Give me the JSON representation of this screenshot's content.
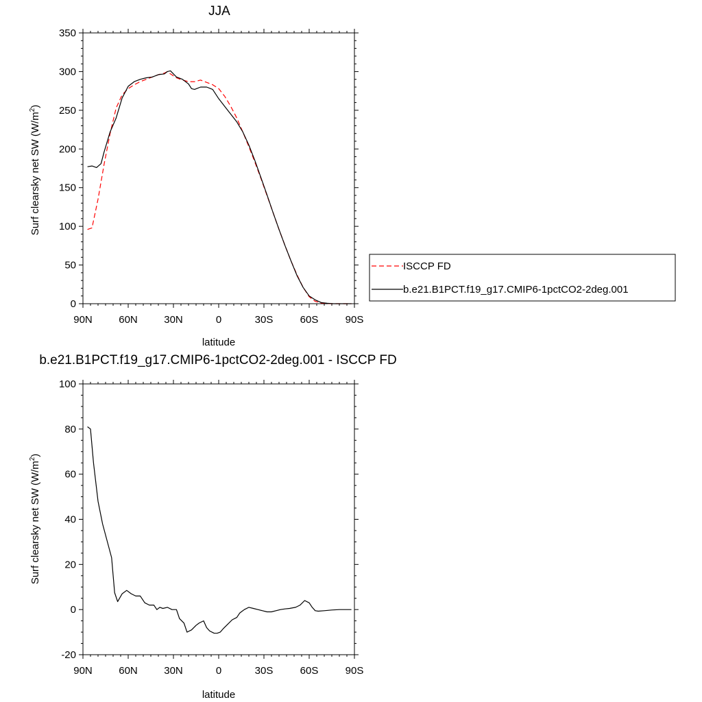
{
  "chart_data": [
    {
      "type": "line",
      "title": "JJA",
      "xlabel": "latitude",
      "ylabel_main": "Surf clearsky net SW (W/m",
      "ylabel_sup": "2",
      "ylabel_tail": ")",
      "xlim": [
        90,
        -90
      ],
      "ylim": [
        0,
        350
      ],
      "x_ticks": [
        90,
        60,
        30,
        0,
        -30,
        -60,
        -90
      ],
      "x_tick_labels": [
        "90N",
        "60N",
        "30N",
        "0",
        "30S",
        "60S",
        "90S"
      ],
      "y_ticks": [
        0,
        50,
        100,
        150,
        200,
        250,
        300,
        350
      ],
      "y_tick_labels": [
        "0",
        "50",
        "100",
        "150",
        "200",
        "250",
        "300",
        "350"
      ],
      "legend_position": "right",
      "series": [
        {
          "name": "ISCCP FD",
          "color": "#ff0000",
          "dash": "dashed",
          "x": [
            87,
            84,
            80,
            76,
            72,
            68,
            64,
            60,
            56,
            52,
            48,
            44,
            40,
            36,
            34,
            32,
            28,
            24,
            20,
            16,
            12,
            8,
            4,
            0,
            -4,
            -8,
            -12,
            -16,
            -20,
            -24,
            -28,
            -32,
            -36,
            -40,
            -44,
            -48,
            -52,
            -56,
            -60,
            -64,
            -68,
            -72,
            -76,
            -80,
            -84,
            -88
          ],
          "y": [
            96,
            98,
            135,
            180,
            220,
            253,
            270,
            278,
            283,
            287,
            290,
            293,
            296,
            298,
            300,
            297,
            292,
            289,
            287,
            287,
            289,
            286,
            283,
            278,
            268,
            255,
            240,
            222,
            203,
            183,
            162,
            140,
            118,
            96,
            75,
            55,
            37,
            21,
            9,
            3,
            1,
            0.3,
            0,
            0,
            0,
            0
          ]
        },
        {
          "name": "b.e21.B1PCT.f19_g17.CMIP6-1pctCO2-2deg.001",
          "color": "#000000",
          "dash": "solid",
          "x": [
            87,
            84,
            81,
            78,
            76,
            72,
            68,
            64,
            60,
            56,
            52,
            48,
            44,
            40,
            36,
            34,
            32,
            28,
            24,
            20,
            18,
            16,
            12,
            8,
            4,
            0,
            -4,
            -8,
            -12,
            -16,
            -20,
            -24,
            -28,
            -32,
            -36,
            -40,
            -44,
            -48,
            -52,
            -56,
            -60,
            -64,
            -68,
            -72,
            -76,
            -80,
            -84,
            -88
          ],
          "y": [
            177,
            178,
            176,
            181,
            196,
            222,
            240,
            266,
            281,
            287,
            290,
            292,
            293,
            296,
            297,
            300,
            301,
            293,
            290,
            284,
            278,
            277,
            280,
            280,
            277,
            265,
            255,
            245,
            235,
            222,
            205,
            185,
            163,
            141,
            118,
            96,
            75,
            55,
            36,
            21,
            10,
            5,
            1.5,
            0.5,
            0,
            0,
            0,
            0
          ]
        }
      ]
    },
    {
      "type": "line",
      "title": "b.e21.B1PCT.f19_g17.CMIP6-1pctCO2-2deg.001 - ISCCP FD",
      "xlabel": "latitude",
      "ylabel_main": "Surf clearsky net SW (W/m",
      "ylabel_sup": "2",
      "ylabel_tail": ")",
      "xlim": [
        90,
        -90
      ],
      "ylim": [
        -20,
        100
      ],
      "x_ticks": [
        90,
        60,
        30,
        0,
        -30,
        -60,
        -90
      ],
      "x_tick_labels": [
        "90N",
        "60N",
        "30N",
        "0",
        "30S",
        "60S",
        "90S"
      ],
      "y_ticks": [
        -20,
        0,
        20,
        40,
        60,
        80,
        100
      ],
      "y_tick_labels": [
        "-20",
        "0",
        "20",
        "40",
        "60",
        "80",
        "100"
      ],
      "series": [
        {
          "color": "#000000",
          "dash": "solid",
          "x": [
            87,
            85,
            83,
            80,
            77,
            73,
            71,
            69,
            67,
            64,
            61,
            58,
            55,
            52,
            49,
            46,
            43,
            41,
            39,
            37,
            34,
            31,
            28,
            26,
            23,
            21,
            18,
            15,
            13,
            10,
            8,
            6,
            3,
            1,
            -1,
            -3,
            -6,
            -9,
            -12,
            -14,
            -17,
            -20,
            -23,
            -26,
            -29,
            -32,
            -35,
            -38,
            -41,
            -44,
            -47,
            -51,
            -54,
            -57,
            -60,
            -62,
            -64,
            -66,
            -70,
            -75,
            -80,
            -85,
            -88
          ],
          "y": [
            81,
            80,
            65,
            48,
            38,
            28,
            23,
            7.5,
            3.5,
            7,
            8.5,
            7,
            6,
            6,
            3,
            2,
            2,
            0,
            1,
            0.5,
            1,
            0,
            0,
            -4,
            -6,
            -10,
            -9,
            -7,
            -6,
            -5,
            -8,
            -9.5,
            -10.5,
            -10.5,
            -10,
            -8.5,
            -6.5,
            -4.5,
            -3.5,
            -1.5,
            0,
            1,
            0.5,
            0,
            -0.5,
            -1,
            -1,
            -0.5,
            0,
            0.3,
            0.5,
            1,
            2,
            4,
            3,
            1,
            -0.5,
            -0.7,
            -0.5,
            -0.2,
            0,
            0,
            0
          ]
        }
      ]
    }
  ]
}
